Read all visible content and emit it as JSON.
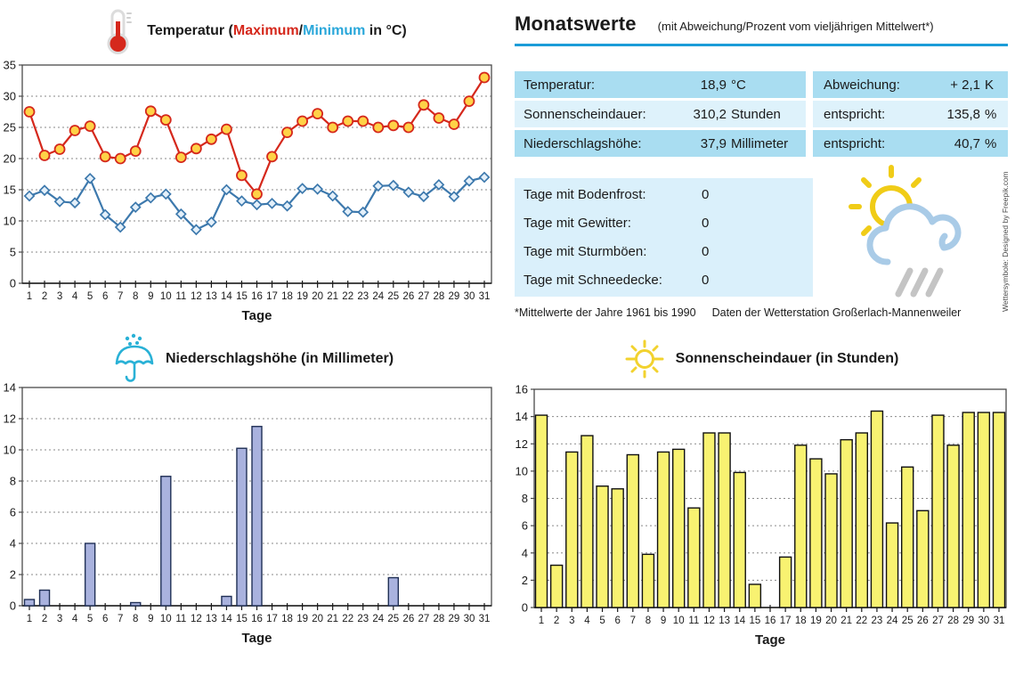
{
  "temperature_title": {
    "part1": "Temperatur (",
    "max": "Maximum",
    "slash": "/",
    "min": "Minimum",
    "part2": " in °C)"
  },
  "monatswerte": {
    "title": "Monatswerte",
    "subtitle": "(mit Abweichung/Prozent vom vieljährigen Mittelwert*)",
    "rows": [
      {
        "label": "Temperatur:",
        "value_num": "18,9",
        "value_unit": "°C",
        "label2": "Abweichung:",
        "value2_num": "+ 2,1",
        "value2_unit": "K"
      },
      {
        "label": "Sonnenscheindauer:",
        "value_num": "310,2",
        "value_unit": "Stunden",
        "label2": "entspricht:",
        "value2_num": "135,8",
        "value2_unit": "%"
      },
      {
        "label": "Niederschlagshöhe:",
        "value_num": "37,9",
        "value_unit": "Millimeter",
        "label2": "entspricht:",
        "value2_num": "40,7",
        "value2_unit": "%"
      }
    ],
    "day_rows": [
      {
        "label": "Tage mit Bodenfrost:",
        "value": "0"
      },
      {
        "label": "Tage mit Gewitter:",
        "value": "0"
      },
      {
        "label": "Tage mit Sturmböen:",
        "value": "0"
      },
      {
        "label": "Tage mit Schneedecke:",
        "value": "0"
      }
    ],
    "footnote1": "*Mittelwerte der Jahre 1961 bis 1990",
    "footnote2": "Daten der Wetterstation Großerlach-Mannenweiler",
    "attribution": "Wettersymbole: Designed by Freepik.com"
  },
  "icons": {
    "temperature": "thermometer-icon",
    "precipitation": "umbrella-rain-icon",
    "sunshine": "sun-icon",
    "summary": "sun-cloud-rain-icon"
  },
  "colors": {
    "max_line": "#d5281c",
    "max_marker_fill": "#ffd247",
    "min_line": "#3d79ad",
    "min_marker_fill": "#e4f0fa",
    "precip_bar": "#a9b2de",
    "precip_bar_stroke": "#1f2f55",
    "sun_bar": "#f8f271",
    "sun_bar_stroke": "#111111",
    "table_row_dark": "#a9ddf1",
    "table_row_light": "#def2fb",
    "underline_accent": "#1b9cd8",
    "icon_cyan": "#29b1d6",
    "icon_yellow": "#f2d22e"
  },
  "chart_data": [
    {
      "type": "line",
      "title": "Temperatur (Maximum/Minimum in °C)",
      "xlabel": "Tage",
      "ylabel": "",
      "ylim": [
        0,
        35
      ],
      "ystep": 5,
      "grid": true,
      "categories": [
        1,
        2,
        3,
        4,
        5,
        6,
        7,
        8,
        9,
        10,
        11,
        12,
        13,
        14,
        15,
        16,
        17,
        18,
        19,
        20,
        21,
        22,
        23,
        24,
        25,
        26,
        27,
        28,
        29,
        30,
        31
      ],
      "series": [
        {
          "name": "Maximum",
          "color": "#d5281c",
          "marker": "circle",
          "marker_fill": "#ffd247",
          "values": [
            27.5,
            20.5,
            21.5,
            24.5,
            25.2,
            20.3,
            20.0,
            21.2,
            27.6,
            26.2,
            20.2,
            21.6,
            23.1,
            24.7,
            17.3,
            14.3,
            20.3,
            24.2,
            26.0,
            27.2,
            25.0,
            26.0,
            26.0,
            25.0,
            25.3,
            25.0,
            28.6,
            26.5,
            25.5,
            29.2,
            33.0
          ]
        },
        {
          "name": "Minimum",
          "color": "#3d79ad",
          "marker": "diamond",
          "marker_fill": "#e4f0fa",
          "values": [
            14.0,
            14.9,
            13.1,
            12.9,
            16.8,
            11.0,
            9.0,
            12.2,
            13.7,
            14.3,
            11.1,
            8.6,
            9.8,
            15.0,
            13.2,
            12.6,
            12.8,
            12.4,
            15.2,
            15.1,
            14.0,
            11.5,
            11.4,
            15.6,
            15.7,
            14.6,
            13.9,
            15.8,
            13.9,
            16.4,
            17.0
          ]
        }
      ]
    },
    {
      "type": "bar",
      "title": "Niederschlagshöhe (in Millimeter)",
      "xlabel": "Tage",
      "ylabel": "",
      "ylim": [
        0,
        14
      ],
      "ystep": 2,
      "grid": true,
      "bar_color": "#a9b2de",
      "bar_stroke": "#1f2f55",
      "categories": [
        1,
        2,
        3,
        4,
        5,
        6,
        7,
        8,
        9,
        10,
        11,
        12,
        13,
        14,
        15,
        16,
        17,
        18,
        19,
        20,
        21,
        22,
        23,
        24,
        25,
        26,
        27,
        28,
        29,
        30,
        31
      ],
      "values": [
        0.4,
        1.0,
        0,
        0,
        4.0,
        0,
        0,
        0.2,
        0,
        8.3,
        0,
        0,
        0,
        0.6,
        10.1,
        11.5,
        0,
        0,
        0,
        0,
        0,
        0,
        0,
        0,
        1.8,
        0,
        0,
        0,
        0,
        0,
        0
      ]
    },
    {
      "type": "bar",
      "title": "Sonnenscheindauer (in Stunden)",
      "xlabel": "Tage",
      "ylabel": "",
      "ylim": [
        0,
        16
      ],
      "ystep": 2,
      "grid": true,
      "bar_color": "#f8f271",
      "bar_stroke": "#111111",
      "categories": [
        1,
        2,
        3,
        4,
        5,
        6,
        7,
        8,
        9,
        10,
        11,
        12,
        13,
        14,
        15,
        16,
        17,
        18,
        19,
        20,
        21,
        22,
        23,
        24,
        25,
        26,
        27,
        28,
        29,
        30,
        31
      ],
      "values": [
        14.1,
        3.1,
        11.4,
        12.6,
        8.9,
        8.7,
        11.2,
        3.9,
        11.4,
        11.6,
        7.3,
        12.8,
        12.8,
        9.9,
        1.7,
        0,
        3.7,
        11.9,
        10.9,
        9.8,
        12.3,
        12.8,
        14.4,
        6.2,
        10.3,
        7.1,
        14.1,
        11.9,
        14.3,
        14.3,
        14.3
      ]
    }
  ]
}
